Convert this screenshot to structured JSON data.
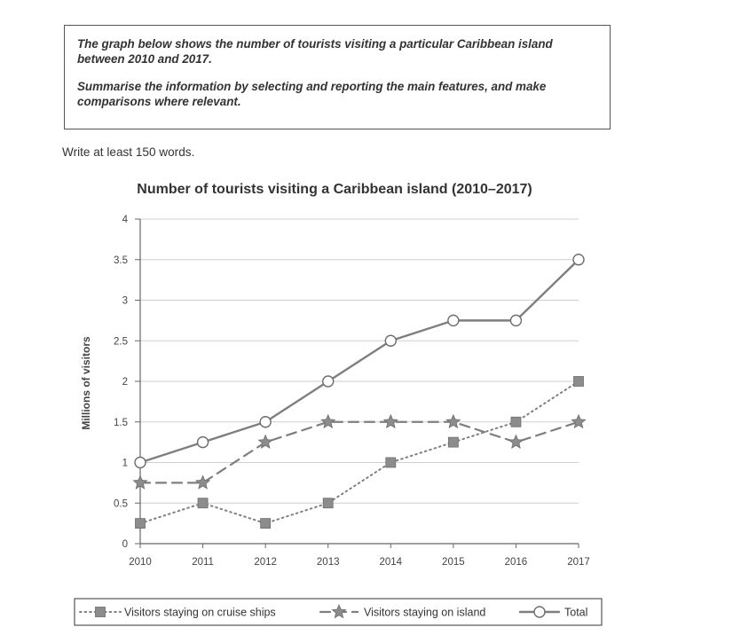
{
  "task": {
    "paragraph1": "The graph below shows the number of tourists visiting a particular Caribbean island between 2010 and 2017.",
    "paragraph2": "Summarise the information by selecting and reporting the main features, and make comparisons where relevant."
  },
  "instruction": "Write at least 150 words.",
  "chart_data": {
    "type": "line",
    "title": "Number of tourists visiting a Caribbean island (2010–2017)",
    "xlabel": "",
    "ylabel": "Millions of visitors",
    "ylim": [
      0,
      4
    ],
    "yticks": [
      "0",
      "0.5",
      "1",
      "1.5",
      "2",
      "2.5",
      "3",
      "3.5",
      "4"
    ],
    "x": [
      "2010",
      "2011",
      "2012",
      "2013",
      "2014",
      "2015",
      "2016",
      "2017"
    ],
    "grid": true,
    "legend_position": "bottom",
    "series": [
      {
        "name": "Visitors staying on cruise ships",
        "marker": "square",
        "line_style": "dotted",
        "values": [
          0.25,
          0.5,
          0.25,
          0.5,
          1,
          1.25,
          1.5,
          2
        ]
      },
      {
        "name": "Visitors staying on island",
        "marker": "star",
        "line_style": "dashed",
        "values": [
          0.75,
          0.75,
          1.25,
          1.5,
          1.5,
          1.5,
          1.25,
          1.5
        ]
      },
      {
        "name": "Total",
        "marker": "circle",
        "line_style": "solid",
        "values": [
          1,
          1.25,
          1.5,
          2,
          2.5,
          2.75,
          2.75,
          3.5
        ]
      }
    ],
    "colors": {
      "line": "#7f7f7f",
      "marker_fill": "#8c8c8c",
      "circle_fill": "#ffffff",
      "grid": "#cfcfcf"
    }
  }
}
